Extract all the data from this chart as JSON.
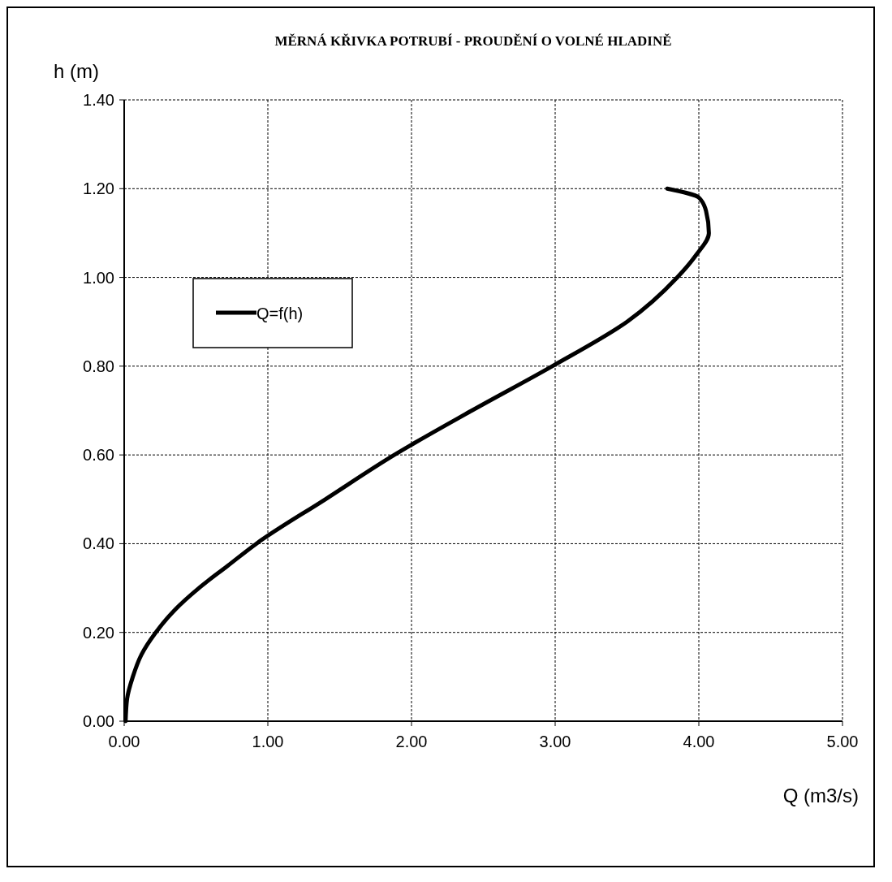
{
  "chart_data": {
    "type": "line",
    "title": "MĚRNÁ  KŘIVKA  POTRUBÍ  - PROUDĚNÍ   O VOLNÉ  HLADINĚ",
    "xlabel": "Q (m3/s)",
    "ylabel": "h (m)",
    "series": [
      {
        "name": "Q=f(h)",
        "color": "#000000",
        "x": [
          0.01,
          0.02,
          0.06,
          0.12,
          0.22,
          0.35,
          0.52,
          0.72,
          0.92,
          1.4,
          1.88,
          2.42,
          2.98,
          3.5,
          3.85,
          3.98,
          4.07,
          4.05,
          4.0,
          3.78
        ],
        "values": [
          0,
          0.05,
          0.1,
          0.15,
          0.2,
          0.25,
          0.3,
          0.35,
          0.4,
          0.5,
          0.6,
          0.7,
          0.8,
          0.9,
          1.0,
          1.05,
          1.1,
          1.15,
          1.18,
          1.2
        ]
      }
    ],
    "xlim": [
      0,
      5
    ],
    "ylim": [
      0,
      1.4
    ],
    "xticks": [
      {
        "value": 0,
        "label": "0.00"
      },
      {
        "value": 1,
        "label": "1.00"
      },
      {
        "value": 2,
        "label": "2.00"
      },
      {
        "value": 3,
        "label": "3.00"
      },
      {
        "value": 4,
        "label": "4.00"
      },
      {
        "value": 5,
        "label": "5.00"
      }
    ],
    "yticks": [
      {
        "value": 0,
        "label": "0.00"
      },
      {
        "value": 0.2,
        "label": "0.20"
      },
      {
        "value": 0.4,
        "label": "0.40"
      },
      {
        "value": 0.6,
        "label": "0.60"
      },
      {
        "value": 0.8,
        "label": "0.80"
      },
      {
        "value": 1.0,
        "label": "1.00"
      },
      {
        "value": 1.2,
        "label": "1.20"
      },
      {
        "value": 1.4,
        "label": "1.40"
      }
    ],
    "grid": true,
    "legend": "top left",
    "marker": "none",
    "line_style": "solid"
  }
}
